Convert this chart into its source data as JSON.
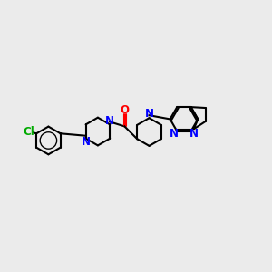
{
  "background_color": "#ebebeb",
  "bond_color": "#000000",
  "nitrogen_color": "#0000ff",
  "oxygen_color": "#ff0000",
  "chlorine_color": "#00aa00",
  "line_width": 1.5,
  "font_size": 8.5,
  "figsize": [
    3.0,
    3.0
  ],
  "dpi": 100,
  "xlim": [
    0,
    12
  ],
  "ylim": [
    0,
    12
  ]
}
